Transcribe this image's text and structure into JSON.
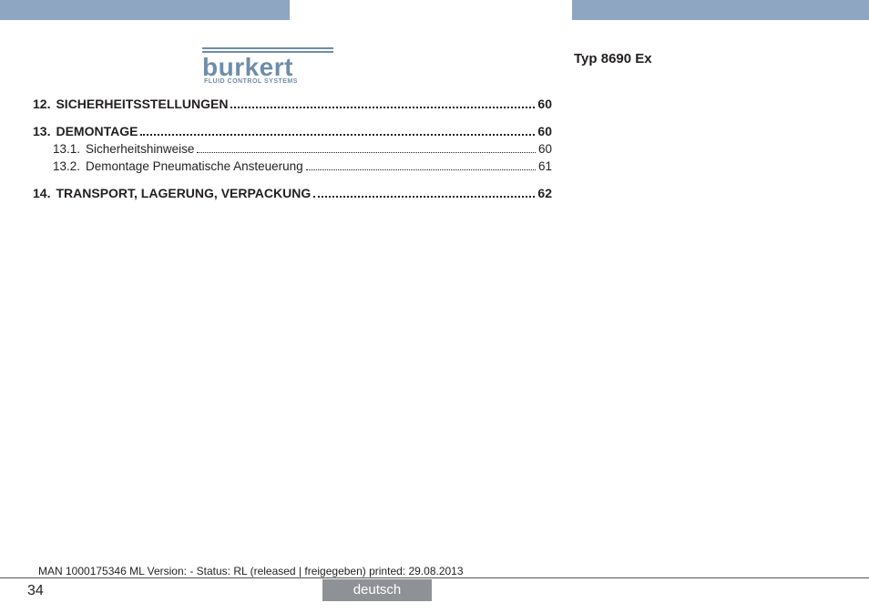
{
  "header": {
    "bar_color": "#8ea6c2",
    "logo_text": "burkert",
    "logo_subtitle": "FLUID CONTROL SYSTEMS",
    "logo_color": "#6e8dab",
    "doc_type": "Typ 8690 Ex"
  },
  "toc": {
    "entries": [
      {
        "level": "main",
        "num": "12.",
        "title": "SICHERHEITSSTELLUNGEN ",
        "page": "60"
      },
      {
        "level": "main",
        "num": "13.",
        "title": "DEMONTAGE",
        "page": "60"
      },
      {
        "level": "sub",
        "num": "13.1.",
        "title": "Sicherheitshinweise",
        "page": "60"
      },
      {
        "level": "sub",
        "num": "13.2.",
        "title": "Demontage Pneumatische Ansteuerung",
        "page": "61"
      },
      {
        "level": "main",
        "num": "14.",
        "title": "TRANSPORT, LAGERUNG, VERPACKUNG",
        "page": "62"
      }
    ]
  },
  "footer": {
    "meta": "MAN 1000175346 ML Version: - Status: RL (released | freigegeben) printed: 29.08.2013",
    "page_number": "34",
    "language_tab": "deutsch",
    "tab_color": "#8e9296"
  }
}
